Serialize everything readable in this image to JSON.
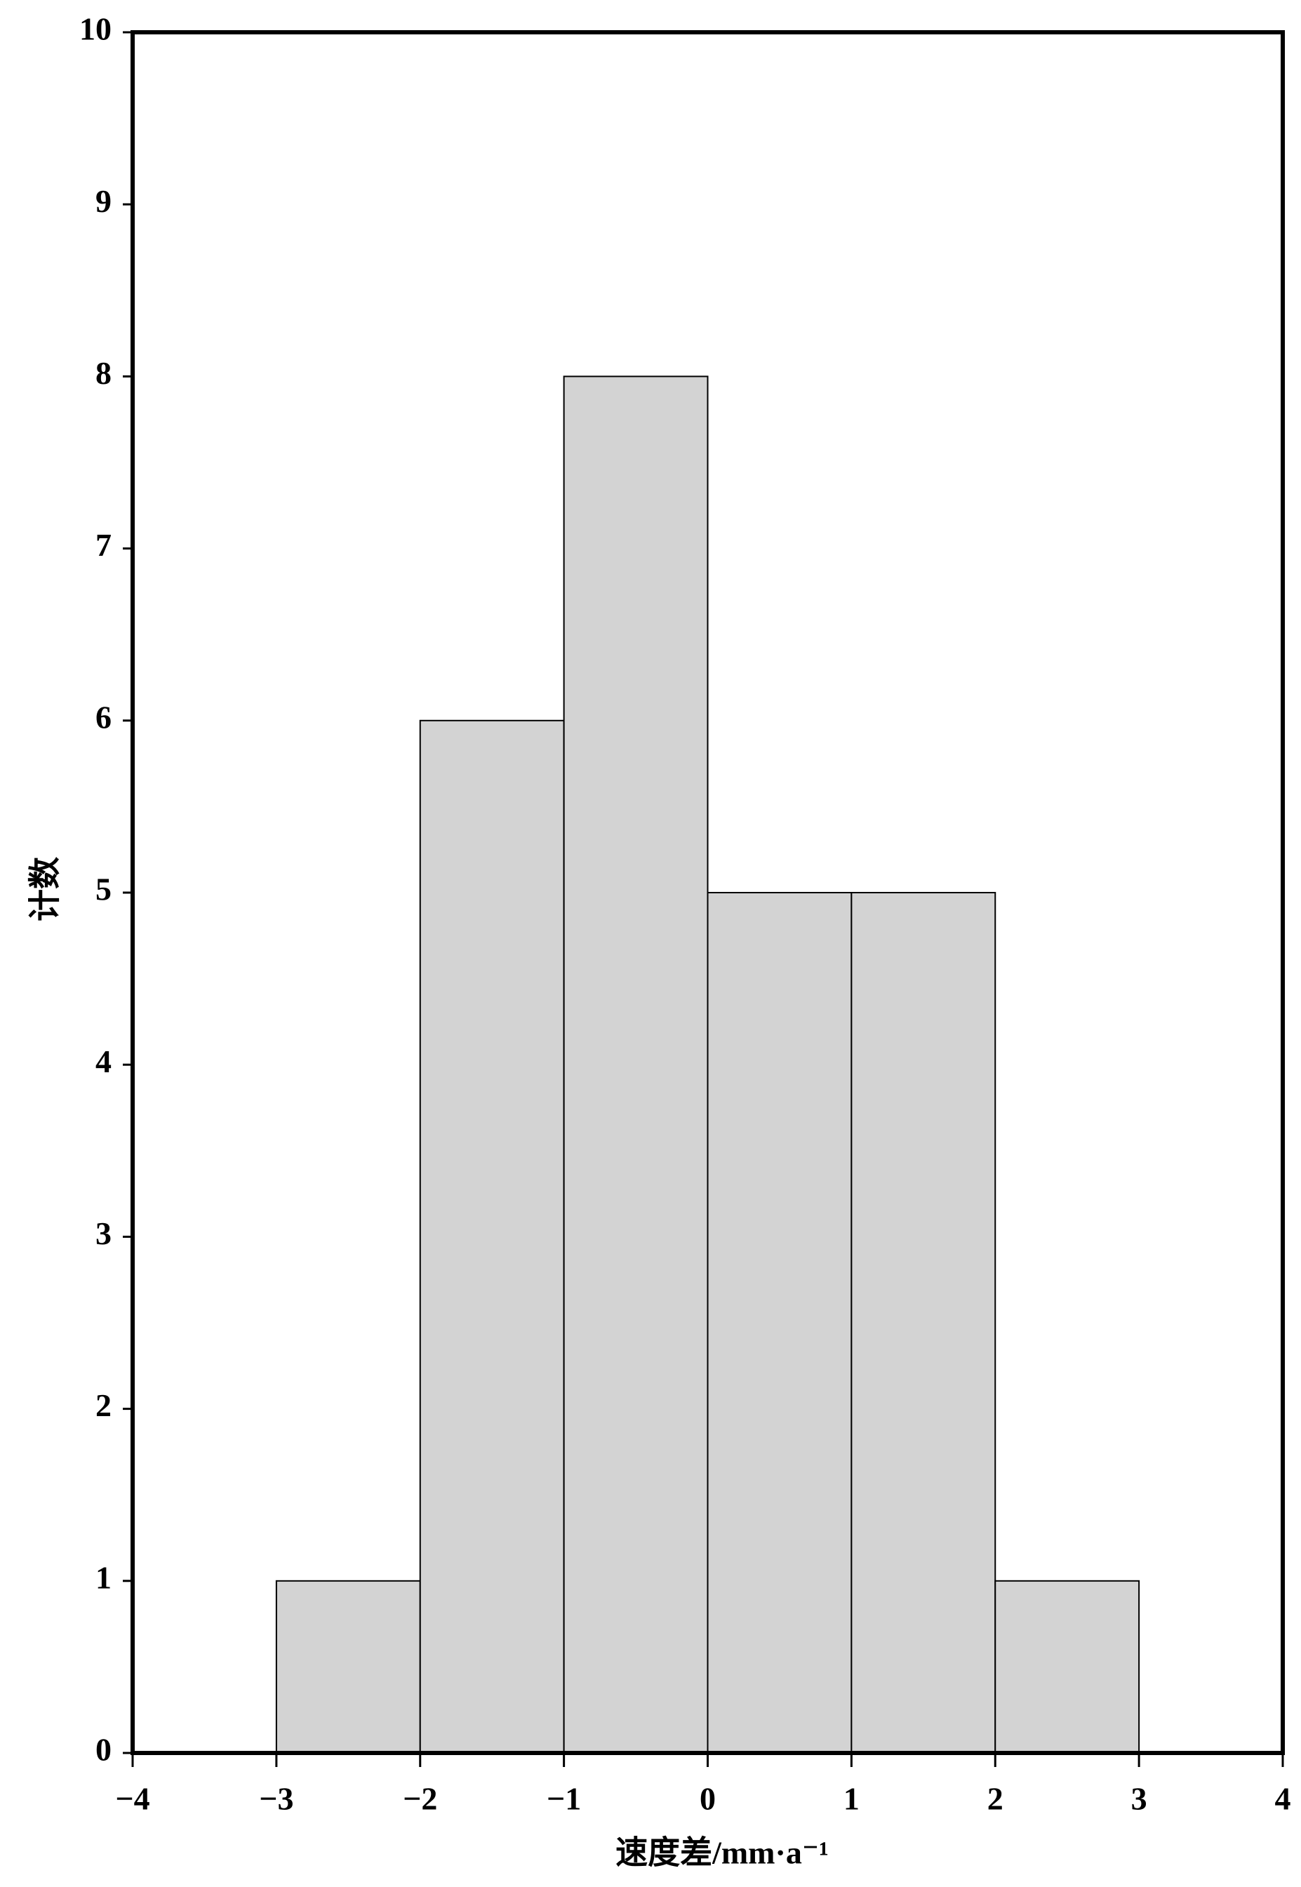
{
  "chart_data": {
    "type": "histogram",
    "x_label": "速度差/mm·a⁻¹",
    "y_label": "计数",
    "bins": [
      -3,
      -2,
      -1,
      0,
      1,
      2,
      3
    ],
    "values": [
      1,
      6,
      8,
      5,
      5,
      1
    ],
    "color": "#d3d3d3",
    "xlim": [
      -4,
      4
    ],
    "xticks": [
      {
        "value": -4,
        "label": "−4"
      },
      {
        "value": -3,
        "label": "−3"
      },
      {
        "value": -2,
        "label": "−2"
      },
      {
        "value": -1,
        "label": "−1"
      },
      0,
      1,
      2,
      3,
      4
    ],
    "ylim": [
      0,
      10
    ],
    "yticks": [
      0,
      1,
      2,
      3,
      4,
      5,
      6,
      7,
      8,
      9,
      10
    ]
  }
}
